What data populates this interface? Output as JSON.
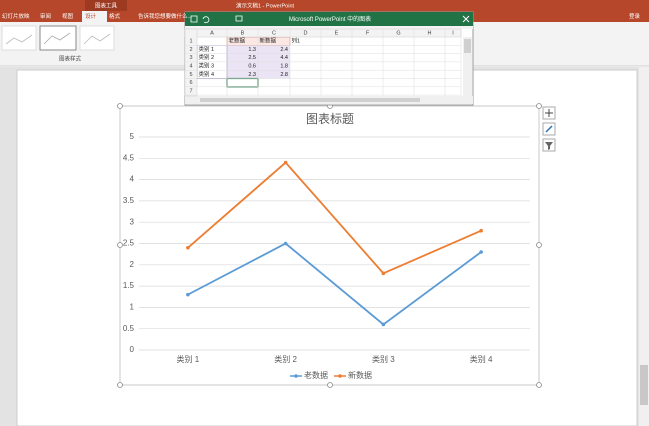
{
  "ribbon": {
    "app_title": "演示文稿1 - PowerPoint",
    "context_tab": "图表工具",
    "tabs": [
      "幻灯片放映",
      "审阅",
      "视图",
      "设计",
      "格式"
    ],
    "tell_me": "告诉我您想要做什么...",
    "sign_in": "登录",
    "group_label": "图表样式"
  },
  "spreadsheet": {
    "title": "Microsoft PowerPoint 中的图表",
    "columns": [
      "A",
      "B",
      "C",
      "D",
      "E",
      "F",
      "G",
      "H",
      "I"
    ],
    "row_numbers": [
      1,
      2,
      3,
      4,
      5,
      6,
      7
    ],
    "rows": [
      [
        null,
        "老数据",
        "新数据",
        "列1"
      ],
      [
        "类别 1",
        1.3,
        2.4
      ],
      [
        "类别 2",
        2.5,
        4.4
      ],
      [
        "类别 3",
        0.6,
        1.8
      ],
      [
        "类别 4",
        2.3,
        2.8
      ]
    ]
  },
  "chart_data": {
    "type": "line",
    "title": "图表标题",
    "categories": [
      "类别 1",
      "类别 2",
      "类别 3",
      "类别 4"
    ],
    "series": [
      {
        "name": "老数据",
        "color": "#5b9bd5",
        "values": [
          1.3,
          2.5,
          0.6,
          2.3
        ]
      },
      {
        "name": "新数据",
        "color": "#ed7d31",
        "values": [
          2.4,
          4.4,
          1.8,
          2.8
        ]
      }
    ],
    "ylim": [
      0,
      5
    ],
    "yticks": [
      0,
      0.5,
      1,
      1.5,
      2,
      2.5,
      3,
      3.5,
      4,
      4.5,
      5
    ],
    "grid": true,
    "legend": "bottom"
  }
}
